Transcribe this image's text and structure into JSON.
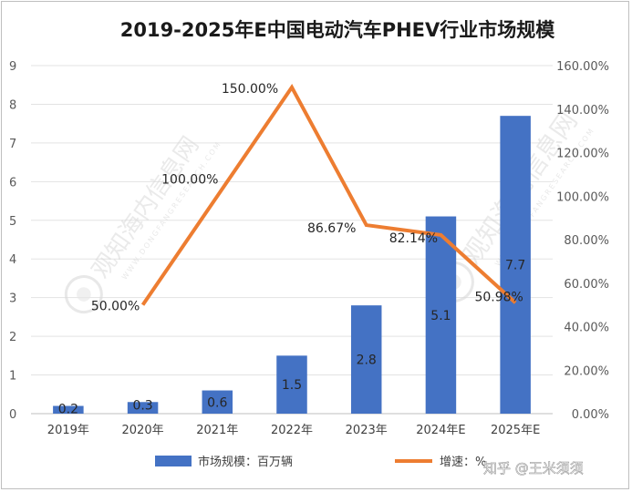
{
  "chart_data": {
    "type": "bar",
    "title": "2019-2025年E中国电动汽车PHEV行业市场规模",
    "categories": [
      "2019年",
      "2020年",
      "2021年",
      "2022年",
      "2023年",
      "2024年E",
      "2025年E"
    ],
    "series": [
      {
        "name": "市场规模：百万辆",
        "type": "bar",
        "axis": "left",
        "values": [
          0.2,
          0.3,
          0.6,
          1.5,
          2.8,
          5.1,
          7.7
        ],
        "labels": [
          "0.2",
          "0.3",
          "0.6",
          "1.5",
          "2.8",
          "5.1",
          "7.7"
        ],
        "color": "#4472c4"
      },
      {
        "name": "增速：%",
        "type": "line",
        "axis": "right",
        "values": [
          null,
          50.0,
          100.0,
          150.0,
          86.67,
          82.14,
          50.98
        ],
        "labels": [
          "",
          "50.00%",
          "100.00%",
          "150.00%",
          "86.67%",
          "82.14%",
          "50.98%"
        ],
        "color": "#ed7d31"
      }
    ],
    "y_left": {
      "ylim": [
        0,
        9
      ],
      "ticks": [
        "0",
        "1",
        "2",
        "3",
        "4",
        "5",
        "6",
        "7",
        "8",
        "9"
      ]
    },
    "y_right": {
      "ylim": [
        0,
        160
      ],
      "ticks": [
        "0.00%",
        "20.00%",
        "40.00%",
        "60.00%",
        "80.00%",
        "100.00%",
        "120.00%",
        "140.00%",
        "160.00%"
      ]
    },
    "grid": "horizontal",
    "legend": "bottom"
  },
  "watermark": {
    "text": "观知海内信息网",
    "subtext": "WWW.DONGFANGRESEARCH.COM",
    "credit": "知乎 @王米须须"
  }
}
